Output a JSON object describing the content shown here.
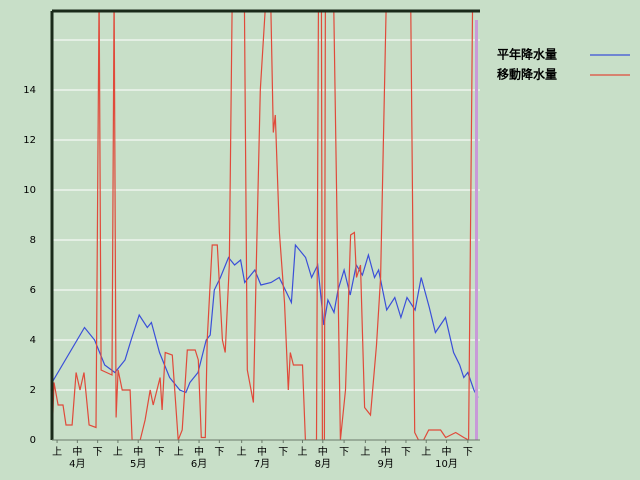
{
  "chart_data": {
    "type": "line",
    "xlim": [
      3,
      214
    ],
    "ylim": [
      0,
      17.16
    ],
    "yticks": [
      0,
      2,
      4,
      6,
      8,
      10,
      12,
      14
    ],
    "gridlines": [
      2,
      4,
      6,
      8,
      10,
      12,
      14,
      16
    ],
    "xticks": [
      {
        "value": 5.5,
        "label": "上"
      },
      {
        "value": 15.5,
        "label": "中"
      },
      {
        "value": 25.5,
        "label": "下"
      },
      {
        "value": 35.5,
        "label": "上"
      },
      {
        "value": 45.5,
        "label": "中"
      },
      {
        "value": 56,
        "label": "下"
      },
      {
        "value": 65.5,
        "label": "上"
      },
      {
        "value": 75.5,
        "label": "中"
      },
      {
        "value": 85.5,
        "label": "下"
      },
      {
        "value": 96.5,
        "label": "上"
      },
      {
        "value": 106.5,
        "label": "中"
      },
      {
        "value": 117,
        "label": "下"
      },
      {
        "value": 126.5,
        "label": "上"
      },
      {
        "value": 136.5,
        "label": "中"
      },
      {
        "value": 147,
        "label": "下"
      },
      {
        "value": 157.5,
        "label": "上"
      },
      {
        "value": 167.5,
        "label": "中"
      },
      {
        "value": 177.5,
        "label": "下"
      },
      {
        "value": 187.5,
        "label": "上"
      },
      {
        "value": 197.5,
        "label": "中"
      },
      {
        "value": 208,
        "label": "下"
      }
    ],
    "months": [
      "4月",
      "5月",
      "6月",
      "7月",
      "8月",
      "9月",
      "10月"
    ],
    "series": [
      {
        "name": "平年降水量",
        "color": "#3a4fd8",
        "x": [
          3,
          19,
          24,
          29,
          34,
          39,
          42,
          46,
          50,
          52,
          56,
          61,
          66,
          69,
          71,
          75,
          79,
          81,
          83,
          86,
          90,
          93,
          96,
          98,
          103,
          106,
          111,
          115,
          118,
          121,
          123,
          128,
          131,
          134,
          137,
          139,
          142,
          144,
          147,
          150,
          153,
          156,
          159,
          162,
          164,
          168,
          172,
          175,
          178,
          182,
          185,
          189,
          192,
          197,
          201,
          204,
          206,
          208,
          211,
          213
        ],
        "values": [
          2.3,
          4.5,
          4,
          3,
          2.7,
          3.2,
          4,
          5,
          4.5,
          4.7,
          3.5,
          2.5,
          2,
          1.9,
          2.3,
          2.7,
          4,
          4.2,
          6,
          6.5,
          7.3,
          7,
          7.2,
          6.3,
          6.8,
          6.2,
          6.3,
          6.5,
          6,
          5.5,
          7.8,
          7.3,
          6.5,
          7,
          4.6,
          5.6,
          5.1,
          6,
          6.8,
          5.8,
          7,
          6.6,
          7.4,
          6.5,
          6.8,
          5.2,
          5.7,
          4.9,
          5.7,
          5.2,
          6.5,
          5.3,
          4.3,
          4.9,
          3.5,
          3,
          2.5,
          2.7,
          2,
          1.7
        ]
      },
      {
        "name": "移動降水量",
        "color": "#e04a3a",
        "x": [
          3,
          4,
          6,
          8.4,
          9.9,
          12.9,
          14.9,
          16.8,
          18.8,
          21.3,
          24.7,
          26.2,
          27.2,
          32.6,
          33.6,
          34.6,
          35.6,
          37.6,
          41.5,
          42.5,
          46.5,
          48.9,
          51.4,
          52.9,
          56.3,
          57.3,
          58.8,
          62.3,
          65.2,
          67.2,
          69.7,
          73.6,
          75.1,
          76.6,
          78.6,
          79.5,
          82,
          84.5,
          87,
          88.4,
          90.4,
          91.9,
          97.8,
          99.3,
          102.3,
          103.7,
          105.7,
          108.7,
          110.7,
          112.1,
          113.1,
          115.1,
          117.6,
          119.5,
          120.5,
          122,
          126.5,
          127.9,
          133.4,
          134.4,
          135.8,
          136.3,
          137.3,
          137.8,
          141.8,
          145.2,
          147.7,
          150.2,
          152.1,
          153.1,
          155.1,
          157.1,
          160,
          163,
          165,
          167.9,
          179.8,
          181.8,
          183.7,
          186.2,
          188.7,
          194.6,
          197.1,
          202,
          206,
          208.4,
          210.4
        ],
        "values": [
          0,
          2.3,
          1.4,
          1.4,
          0.6,
          0.6,
          2.7,
          2,
          2.7,
          0.6,
          0.5,
          18,
          2.8,
          2.6,
          18,
          0.9,
          2.8,
          2,
          2,
          0,
          0,
          0.8,
          2,
          1.4,
          2.5,
          1.2,
          3.5,
          3.4,
          0,
          0.4,
          3.6,
          3.6,
          3.2,
          0.1,
          0.1,
          4,
          7.8,
          7.8,
          4,
          3.5,
          7,
          18,
          18,
          2.8,
          1.5,
          7,
          14,
          18,
          18,
          12.3,
          13,
          8.3,
          5.5,
          2,
          3.5,
          3,
          3,
          0,
          0,
          18,
          18,
          0,
          0,
          18,
          18,
          0,
          2,
          8.2,
          8.3,
          6.5,
          7,
          1.3,
          1,
          3.8,
          6.5,
          18,
          18,
          0.3,
          0,
          0,
          0.4,
          0.4,
          0.1,
          0.3,
          0.1,
          0,
          18
        ]
      }
    ]
  }
}
